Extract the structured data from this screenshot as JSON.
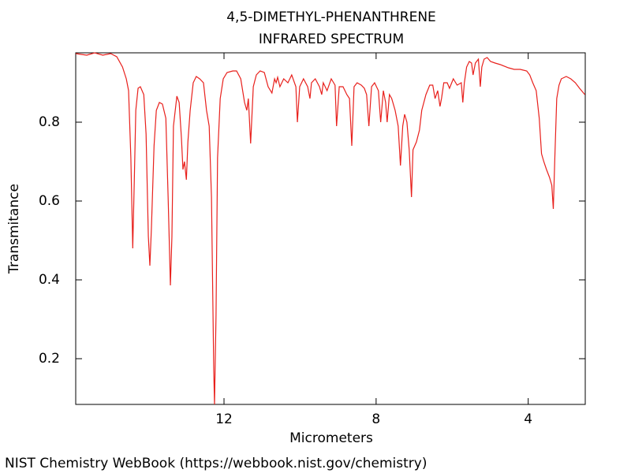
{
  "chart_data": {
    "type": "line",
    "title": "4,5-DIMETHYL-PHENANTHRENE",
    "subtitle": "INFRARED SPECTRUM",
    "x_label": "Micrometers",
    "y_label": "Transmitance",
    "source": "NIST Chemistry WebBook (https://webbook.nist.gov/chemistry)",
    "xlim": [
      15.9,
      2.5
    ],
    "ylim": [
      0.084,
      0.976
    ],
    "xticks": [
      12,
      8,
      4
    ],
    "yticks": [
      0.8,
      0.6,
      0.4,
      0.2
    ],
    "grid": false,
    "color": "#e8201c",
    "x": [
      15.9,
      15.61,
      15.4,
      15.19,
      14.98,
      14.82,
      14.67,
      14.57,
      14.51,
      14.45,
      14.4,
      14.36,
      14.32,
      14.26,
      14.2,
      14.11,
      14.05,
      13.99,
      13.95,
      13.91,
      13.84,
      13.78,
      13.7,
      13.62,
      13.53,
      13.47,
      13.41,
      13.37,
      13.33,
      13.24,
      13.18,
      13.12,
      13.08,
      13.04,
      12.99,
      12.95,
      12.89,
      12.81,
      12.73,
      12.64,
      12.54,
      12.46,
      12.39,
      12.33,
      12.27,
      12.25,
      12.21,
      12.17,
      12.1,
      12.02,
      11.92,
      11.77,
      11.67,
      11.56,
      11.46,
      11.4,
      11.36,
      11.3,
      11.23,
      11.15,
      11.05,
      10.94,
      10.84,
      10.74,
      10.67,
      10.63,
      10.59,
      10.53,
      10.43,
      10.32,
      10.22,
      10.11,
      10.07,
      10.01,
      9.91,
      9.8,
      9.74,
      9.7,
      9.6,
      9.49,
      9.43,
      9.39,
      9.29,
      9.18,
      9.08,
      9.04,
      8.97,
      8.87,
      8.77,
      8.7,
      8.64,
      8.58,
      8.5,
      8.39,
      8.31,
      8.25,
      8.19,
      8.12,
      8.04,
      7.94,
      7.88,
      7.81,
      7.75,
      7.71,
      7.65,
      7.59,
      7.5,
      7.42,
      7.36,
      7.3,
      7.25,
      7.19,
      7.13,
      7.07,
      7.03,
      6.94,
      6.86,
      6.8,
      6.69,
      6.59,
      6.51,
      6.45,
      6.38,
      6.32,
      6.28,
      6.22,
      6.13,
      6.07,
      5.97,
      5.87,
      5.76,
      5.72,
      5.68,
      5.62,
      5.55,
      5.49,
      5.45,
      5.39,
      5.31,
      5.26,
      5.22,
      5.16,
      5.08,
      4.99,
      4.87,
      4.73,
      4.52,
      4.37,
      4.21,
      4.04,
      3.96,
      3.88,
      3.79,
      3.71,
      3.65,
      3.59,
      3.52,
      3.44,
      3.38,
      3.34,
      3.3,
      3.25,
      3.19,
      3.13,
      3.0,
      2.88,
      2.76,
      2.65,
      2.51
    ],
    "values": [
      0.974,
      0.97,
      0.976,
      0.97,
      0.974,
      0.966,
      0.94,
      0.91,
      0.88,
      0.71,
      0.48,
      0.65,
      0.83,
      0.886,
      0.89,
      0.87,
      0.77,
      0.51,
      0.436,
      0.53,
      0.74,
      0.83,
      0.85,
      0.846,
      0.81,
      0.61,
      0.386,
      0.51,
      0.79,
      0.866,
      0.85,
      0.76,
      0.68,
      0.7,
      0.654,
      0.75,
      0.83,
      0.9,
      0.916,
      0.91,
      0.9,
      0.83,
      0.79,
      0.61,
      0.17,
      0.084,
      0.31,
      0.71,
      0.86,
      0.91,
      0.926,
      0.93,
      0.93,
      0.91,
      0.85,
      0.83,
      0.86,
      0.746,
      0.89,
      0.92,
      0.93,
      0.926,
      0.89,
      0.874,
      0.91,
      0.9,
      0.914,
      0.89,
      0.91,
      0.9,
      0.92,
      0.89,
      0.8,
      0.89,
      0.91,
      0.89,
      0.86,
      0.9,
      0.91,
      0.89,
      0.87,
      0.9,
      0.88,
      0.91,
      0.894,
      0.79,
      0.89,
      0.89,
      0.87,
      0.86,
      0.74,
      0.89,
      0.9,
      0.894,
      0.886,
      0.87,
      0.79,
      0.89,
      0.9,
      0.88,
      0.8,
      0.88,
      0.85,
      0.8,
      0.87,
      0.86,
      0.83,
      0.79,
      0.69,
      0.79,
      0.82,
      0.8,
      0.73,
      0.61,
      0.73,
      0.75,
      0.78,
      0.83,
      0.87,
      0.894,
      0.894,
      0.86,
      0.88,
      0.84,
      0.86,
      0.9,
      0.9,
      0.886,
      0.91,
      0.894,
      0.9,
      0.85,
      0.9,
      0.94,
      0.954,
      0.95,
      0.92,
      0.95,
      0.96,
      0.89,
      0.94,
      0.96,
      0.964,
      0.954,
      0.95,
      0.946,
      0.938,
      0.934,
      0.934,
      0.93,
      0.92,
      0.9,
      0.88,
      0.81,
      0.72,
      0.7,
      0.68,
      0.66,
      0.64,
      0.58,
      0.71,
      0.86,
      0.894,
      0.91,
      0.916,
      0.91,
      0.9,
      0.886,
      0.87
    ]
  }
}
